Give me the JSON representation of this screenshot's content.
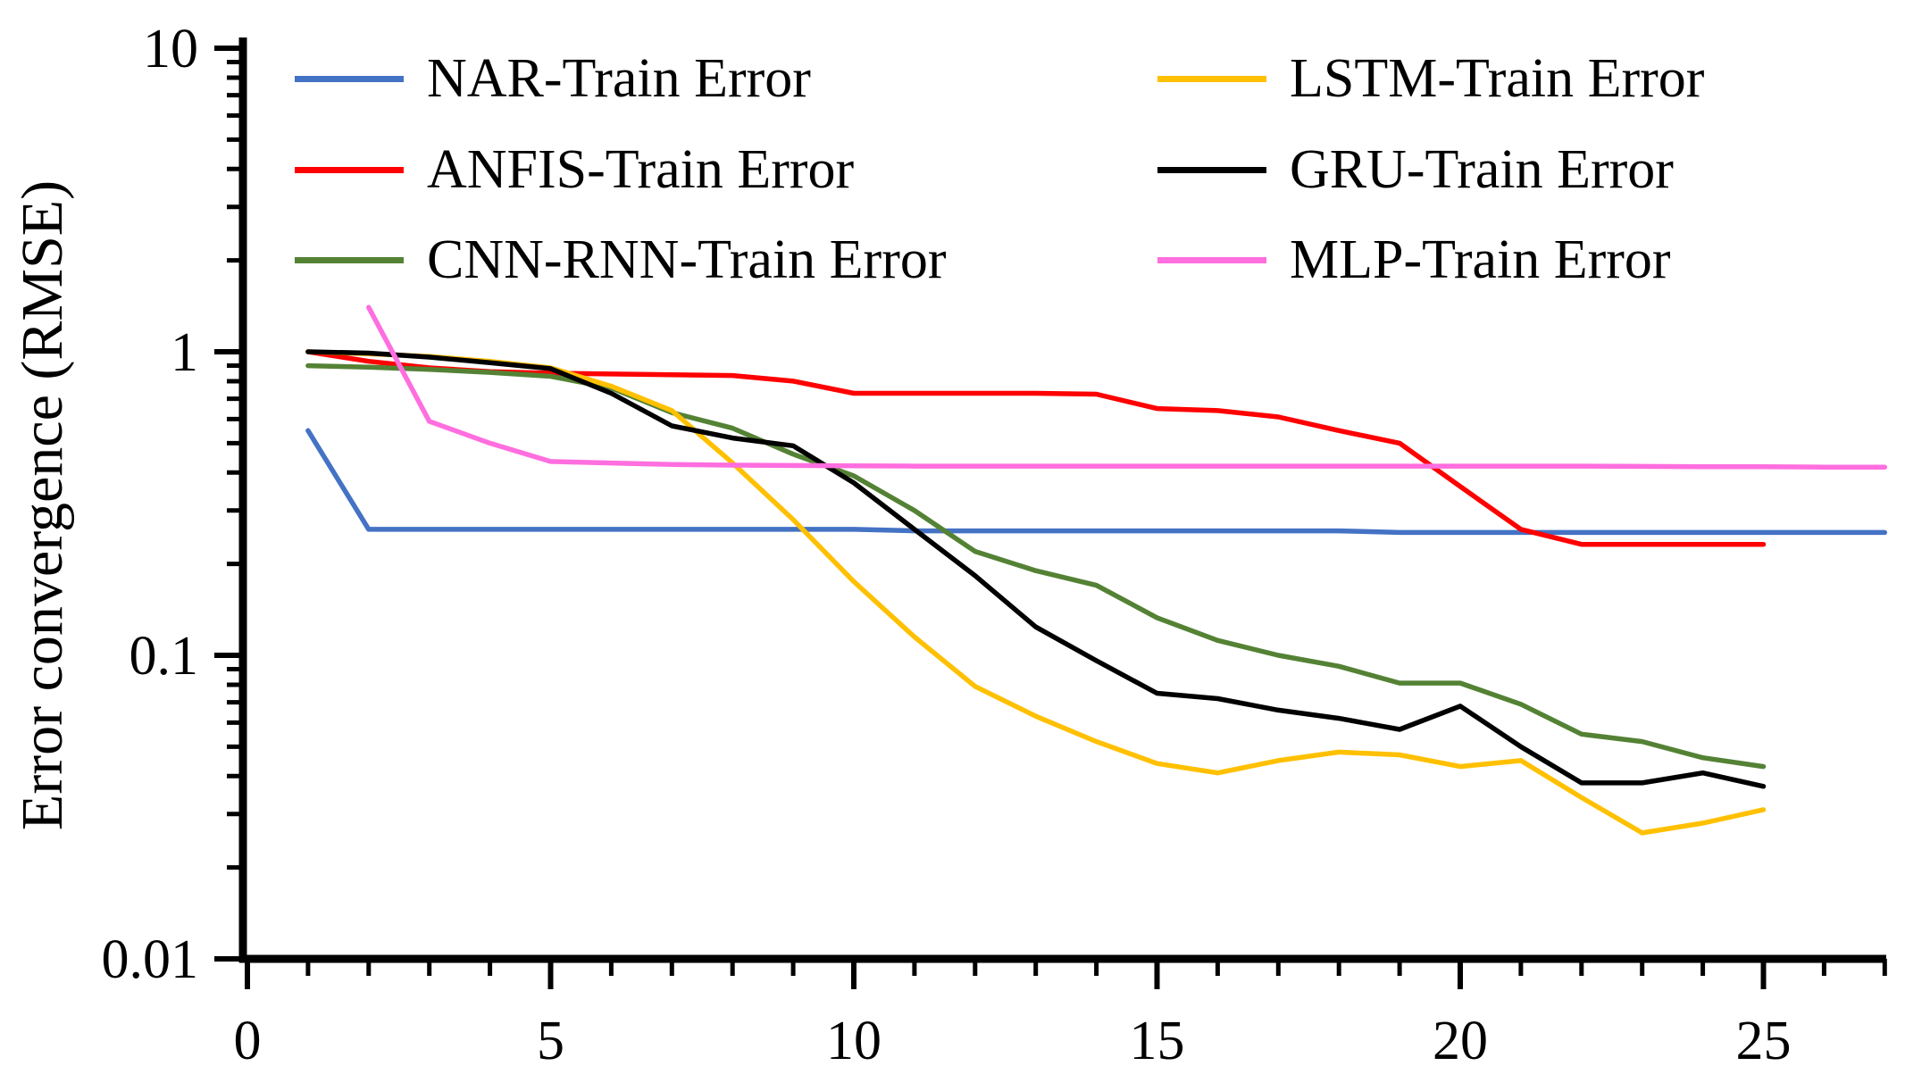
{
  "chart_data": {
    "type": "line",
    "title": "",
    "xlabel": "",
    "ylabel": "Error convergence (RMSE)",
    "grid": false,
    "legend_position": "top",
    "x_axis": {
      "min": 0,
      "max": 27,
      "tick_values": [
        0,
        5,
        10,
        15,
        20,
        25
      ],
      "tick_labels": [
        "0",
        "5",
        "10",
        "15",
        "20",
        "25"
      ],
      "minor_tick_step": 1
    },
    "y_axis": {
      "scale": "log",
      "min": 0.01,
      "max": 10,
      "tick_values": [
        10,
        1,
        0.1,
        0.01
      ],
      "tick_labels": [
        "10",
        "1",
        "0.1",
        "0.01"
      ]
    },
    "series": [
      {
        "name": "NAR-Train Error",
        "color": "#4472C4",
        "x_start": 1,
        "values": [
          0.55,
          0.26,
          0.26,
          0.26,
          0.26,
          0.26,
          0.26,
          0.26,
          0.26,
          0.26,
          0.257,
          0.257,
          0.257,
          0.257,
          0.257,
          0.257,
          0.257,
          0.257,
          0.254,
          0.254,
          0.254,
          0.254,
          0.254,
          0.254,
          0.254,
          0.254,
          0.254
        ]
      },
      {
        "name": "ANFIS-Train Error",
        "color": "#FF0000",
        "x_start": 1,
        "values": [
          1.0,
          0.93,
          0.885,
          0.86,
          0.85,
          0.845,
          0.84,
          0.835,
          0.8,
          0.73,
          0.73,
          0.73,
          0.73,
          0.725,
          0.65,
          0.64,
          0.61,
          0.55,
          0.5,
          0.36,
          0.26,
          0.232,
          0.232,
          0.232,
          0.232
        ]
      },
      {
        "name": "CNN-RNN-Train Error",
        "color": "#548235",
        "x_start": 1,
        "values": [
          0.9,
          0.89,
          0.875,
          0.855,
          0.83,
          0.76,
          0.63,
          0.56,
          0.46,
          0.39,
          0.3,
          0.22,
          0.19,
          0.17,
          0.133,
          0.112,
          0.1,
          0.092,
          0.081,
          0.081,
          0.069,
          0.055,
          0.052,
          0.046,
          0.043
        ]
      },
      {
        "name": "LSTM-Train Error",
        "color": "#FFC000",
        "x_start": 1,
        "values": [
          1.0,
          0.985,
          0.965,
          0.93,
          0.885,
          0.77,
          0.64,
          0.43,
          0.28,
          0.175,
          0.115,
          0.079,
          0.063,
          0.052,
          0.044,
          0.041,
          0.045,
          0.048,
          0.047,
          0.043,
          0.045,
          0.034,
          0.026,
          0.028,
          0.031
        ]
      },
      {
        "name": "GRU-Train Error",
        "color": "#000000",
        "x_start": 1,
        "values": [
          1.0,
          0.99,
          0.96,
          0.92,
          0.88,
          0.73,
          0.57,
          0.52,
          0.49,
          0.37,
          0.26,
          0.183,
          0.124,
          0.096,
          0.075,
          0.072,
          0.066,
          0.062,
          0.057,
          0.068,
          0.05,
          0.038,
          0.038,
          0.041,
          0.037
        ]
      },
      {
        "name": "MLP-Train Error",
        "color": "#FF6EDF",
        "x_start": 2,
        "values": [
          1.4,
          0.59,
          0.5,
          0.435,
          0.43,
          0.425,
          0.423,
          0.422,
          0.421,
          0.42,
          0.42,
          0.42,
          0.42,
          0.42,
          0.42,
          0.42,
          0.42,
          0.42,
          0.42,
          0.42,
          0.42,
          0.419,
          0.418,
          0.418,
          0.417,
          0.417
        ]
      }
    ],
    "legend_columns": [
      [
        "NAR-Train Error",
        "ANFIS-Train Error",
        "CNN-RNN-Train Error"
      ],
      [
        "LSTM-Train Error",
        "GRU-Train Error",
        "MLP-Train Error"
      ]
    ]
  }
}
